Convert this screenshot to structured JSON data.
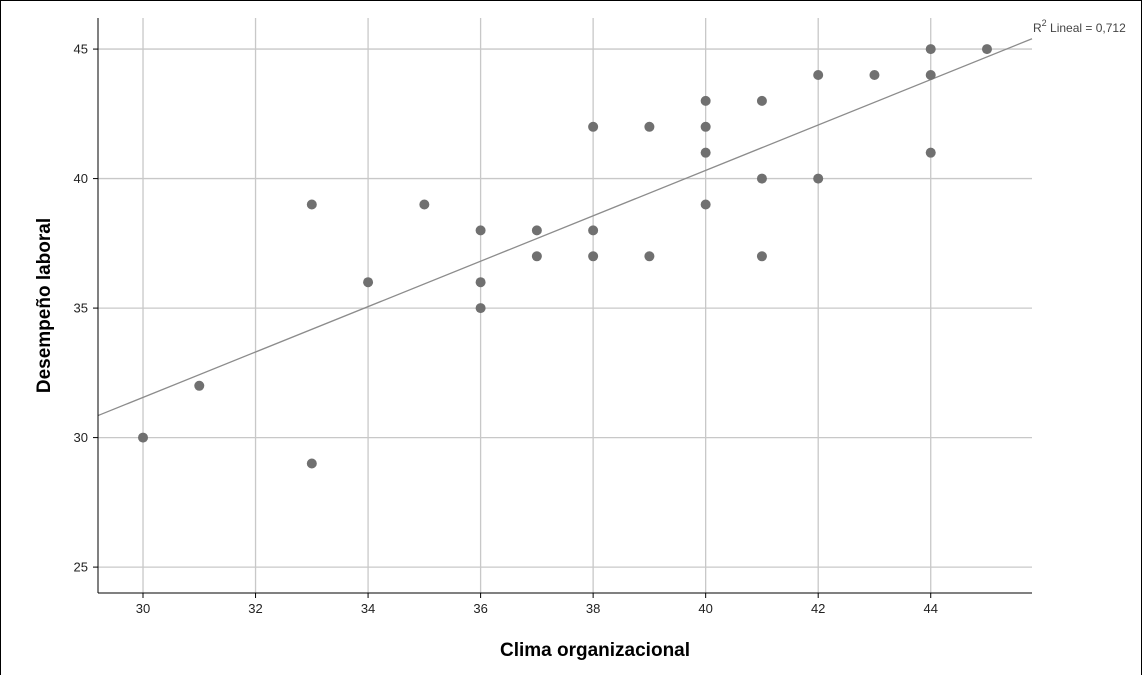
{
  "chart_data": {
    "type": "scatter",
    "title": "",
    "xlabel": "Clima organizacional",
    "ylabel": "Desempeño laboral",
    "xlim": [
      29.2,
      45.8
    ],
    "ylim": [
      24,
      46.2
    ],
    "xticks": [
      30,
      32,
      34,
      36,
      38,
      40,
      42,
      44
    ],
    "yticks": [
      25,
      30,
      35,
      40,
      45
    ],
    "grid": true,
    "legend": "none",
    "colors": {
      "points": "#707070",
      "grid": "#c8c8c8",
      "fit_line": "#8c8c8c",
      "axes": "#000000"
    },
    "points": [
      {
        "x": 30,
        "y": 30
      },
      {
        "x": 31,
        "y": 32
      },
      {
        "x": 33,
        "y": 39
      },
      {
        "x": 33,
        "y": 29
      },
      {
        "x": 34,
        "y": 36
      },
      {
        "x": 35,
        "y": 39
      },
      {
        "x": 36,
        "y": 38
      },
      {
        "x": 36,
        "y": 36
      },
      {
        "x": 36,
        "y": 35
      },
      {
        "x": 37,
        "y": 38
      },
      {
        "x": 37,
        "y": 37
      },
      {
        "x": 38,
        "y": 42
      },
      {
        "x": 38,
        "y": 38
      },
      {
        "x": 38,
        "y": 37
      },
      {
        "x": 39,
        "y": 42
      },
      {
        "x": 39,
        "y": 37
      },
      {
        "x": 40,
        "y": 43
      },
      {
        "x": 40,
        "y": 42
      },
      {
        "x": 40,
        "y": 41
      },
      {
        "x": 40,
        "y": 39
      },
      {
        "x": 41,
        "y": 43
      },
      {
        "x": 41,
        "y": 40
      },
      {
        "x": 41,
        "y": 37
      },
      {
        "x": 42,
        "y": 44
      },
      {
        "x": 42,
        "y": 40
      },
      {
        "x": 43,
        "y": 44
      },
      {
        "x": 44,
        "y": 45
      },
      {
        "x": 44,
        "y": 44
      },
      {
        "x": 44,
        "y": 41
      },
      {
        "x": 45,
        "y": 45
      }
    ],
    "fit_line": {
      "type": "linear",
      "r2_prefix": "R",
      "r2_exponent": "2",
      "r2_text": " Lineal = 0,712",
      "points": [
        {
          "x": 29.2,
          "y": 30.85
        },
        {
          "x": 45.8,
          "y": 45.4
        }
      ]
    }
  }
}
